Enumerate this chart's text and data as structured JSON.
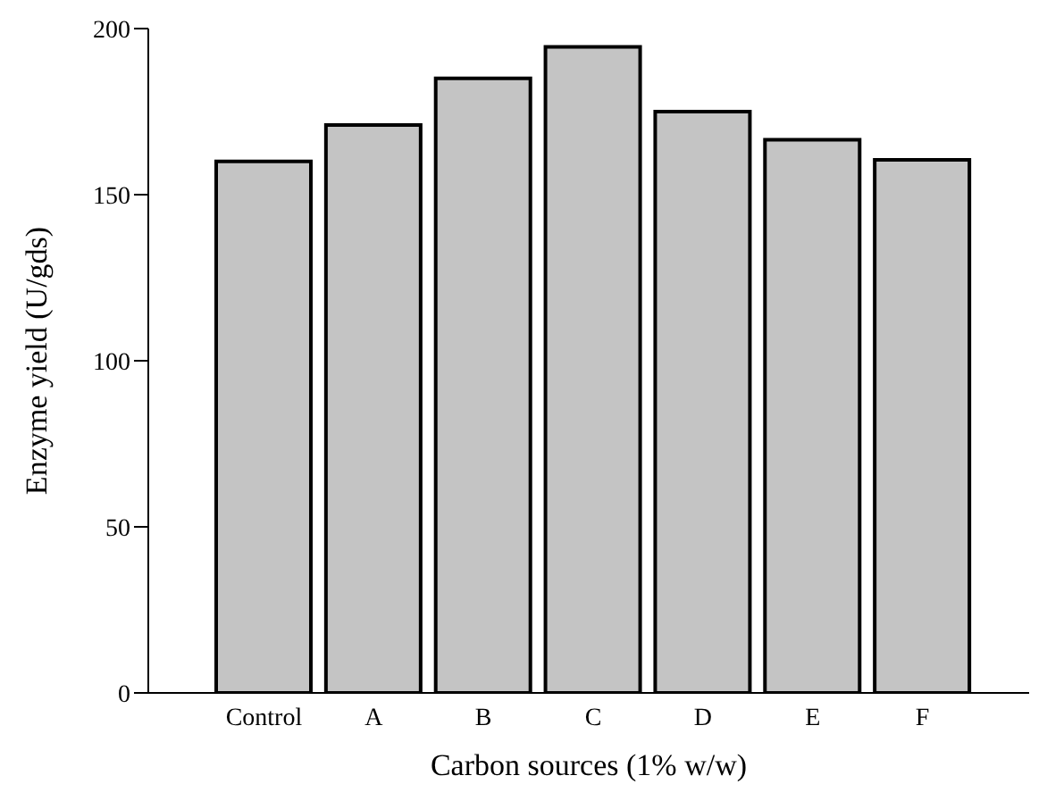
{
  "chart_data": {
    "type": "bar",
    "xlabel": "Carbon sources (1% w/w)",
    "ylabel": "Enzyme yield (U/gds)",
    "categories": [
      "Control",
      "A",
      "B",
      "C",
      "D",
      "E",
      "F"
    ],
    "values": [
      160,
      171,
      185,
      194.5,
      175,
      166.5,
      160.5
    ],
    "color": "#c4c4c4",
    "ylim": [
      0,
      200
    ],
    "yticks": [
      0,
      50,
      100,
      150,
      200
    ],
    "grid": false,
    "legend": false
  }
}
